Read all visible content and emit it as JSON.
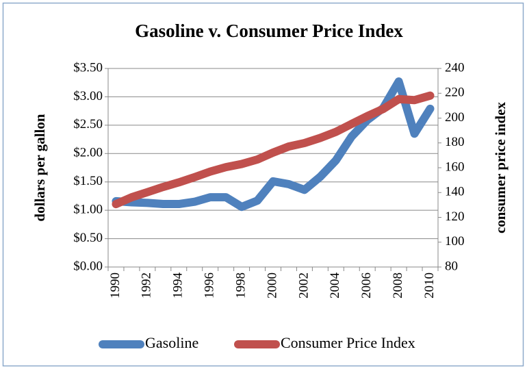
{
  "chart_data": {
    "type": "line",
    "title": "Gasoline v. Consumer Price Index",
    "ylabel": "dollars per gallon",
    "y2label": "consumer price index",
    "categories": [
      "1990",
      null,
      "1992",
      null,
      "1994",
      null,
      "1996",
      null,
      "1998",
      null,
      "2000",
      null,
      "2002",
      null,
      "2004",
      null,
      "2006",
      null,
      "2008",
      null,
      "2010"
    ],
    "series": [
      {
        "name": "Gasoline",
        "color": "#4f81bd",
        "values": [
          1.16,
          1.14,
          1.13,
          1.11,
          1.11,
          1.15,
          1.23,
          1.23,
          1.06,
          1.17,
          1.51,
          1.46,
          1.36,
          1.59,
          1.88,
          2.3,
          2.59,
          2.8,
          3.27,
          2.35,
          2.79
        ]
      },
      {
        "name": "Consumer Price Index",
        "color": "#c0504d",
        "axis": "y2",
        "values": [
          130.7,
          136.2,
          140.3,
          144.5,
          148.2,
          152.4,
          156.9,
          160.5,
          163.0,
          166.6,
          172.2,
          177.1,
          179.9,
          184.0,
          188.9,
          195.3,
          201.6,
          207.3,
          215.3,
          214.5,
          218.1
        ]
      }
    ],
    "ylim": [
      0,
      3.5
    ],
    "yticks": [
      {
        "value": 0,
        "label": "$0.00"
      },
      {
        "value": 0.5,
        "label": "$0.50"
      },
      {
        "value": 1,
        "label": "$1.00"
      },
      {
        "value": 1.5,
        "label": "$1.50"
      },
      {
        "value": 2,
        "label": "$2.00"
      },
      {
        "value": 2.5,
        "label": "$2.50"
      },
      {
        "value": 3,
        "label": "$3.00"
      },
      {
        "value": 3.5,
        "label": "$3.50"
      }
    ],
    "y2lim": [
      80,
      240
    ],
    "y2ticks": [
      80,
      100,
      120,
      140,
      160,
      180,
      200,
      220,
      240
    ],
    "grid": true,
    "legend": "bottom"
  }
}
